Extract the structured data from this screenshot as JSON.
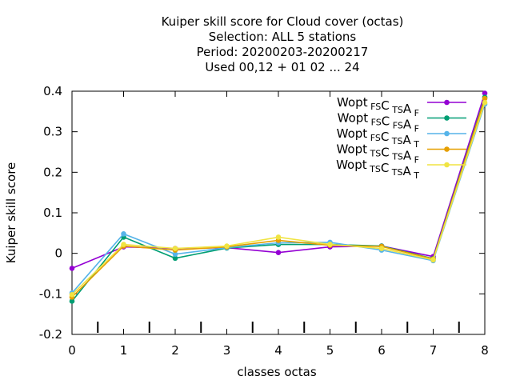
{
  "chart_data": {
    "type": "line",
    "title_lines": [
      "Kuiper skill score  for Cloud cover (octas)",
      "Selection: ALL      5 stations",
      "Period: 20200203-20200217",
      "Used  00,12  + 01 02 ... 24"
    ],
    "xlabel": "classes octas",
    "ylabel": "Kuiper skill score",
    "xlim": [
      0,
      8
    ],
    "ylim": [
      -0.2,
      0.4
    ],
    "x_ticks": [
      "0",
      "1",
      "2",
      "3",
      "4",
      "5",
      "6",
      "7",
      "8"
    ],
    "y_ticks": [
      "-0.2",
      "-0.1",
      "0",
      "0.1",
      "0.2",
      "0.3",
      "0.4"
    ],
    "grid": false,
    "legend_position": "top-right",
    "x": [
      0,
      1,
      2,
      3,
      4,
      5,
      6,
      7,
      8
    ],
    "series": [
      {
        "name": "Wopt FS C TS A F",
        "legend": [
          [
            "Wopt",
            ""
          ],
          [
            "",
            "FS"
          ],
          [
            "C",
            ""
          ],
          [
            "",
            "TS"
          ],
          [
            "A",
            ""
          ],
          [
            "",
            "F"
          ]
        ],
        "color": "#9400d3",
        "values": [
          -0.037,
          0.016,
          0.012,
          0.014,
          0.002,
          0.016,
          0.018,
          -0.008,
          0.395
        ]
      },
      {
        "name": "Wopt FS C FS A F",
        "legend": [
          [
            "Wopt",
            ""
          ],
          [
            "",
            "FS"
          ],
          [
            "C",
            ""
          ],
          [
            "",
            "FS"
          ],
          [
            "A",
            ""
          ],
          [
            "",
            "F"
          ]
        ],
        "color": "#009e73",
        "values": [
          -0.118,
          0.04,
          -0.012,
          0.013,
          0.022,
          0.022,
          0.018,
          -0.013,
          0.385
        ]
      },
      {
        "name": "Wopt FS C TS A T",
        "legend": [
          [
            "Wopt",
            ""
          ],
          [
            "",
            "FS"
          ],
          [
            "C",
            ""
          ],
          [
            "",
            "TS"
          ],
          [
            "A",
            ""
          ],
          [
            "",
            "T"
          ]
        ],
        "color": "#56b4e9",
        "values": [
          -0.098,
          0.048,
          -0.002,
          0.014,
          0.026,
          0.027,
          0.008,
          -0.018,
          0.368
        ]
      },
      {
        "name": "Wopt TS C TS A F",
        "legend": [
          [
            "Wopt",
            ""
          ],
          [
            "",
            "TS"
          ],
          [
            "C",
            ""
          ],
          [
            "",
            "TS"
          ],
          [
            "A",
            ""
          ],
          [
            "",
            "F"
          ]
        ],
        "color": "#e69f00",
        "values": [
          -0.108,
          0.018,
          0.008,
          0.016,
          0.032,
          0.02,
          0.017,
          -0.014,
          0.382
        ]
      },
      {
        "name": "Wopt TS C TS A T",
        "legend": [
          [
            "Wopt",
            ""
          ],
          [
            "",
            "TS"
          ],
          [
            "C",
            ""
          ],
          [
            "",
            "TS"
          ],
          [
            "A",
            ""
          ],
          [
            "",
            "T"
          ]
        ],
        "color": "#f0e442",
        "values": [
          -0.102,
          0.022,
          0.012,
          0.018,
          0.04,
          0.022,
          0.012,
          -0.016,
          0.372
        ]
      }
    ]
  }
}
